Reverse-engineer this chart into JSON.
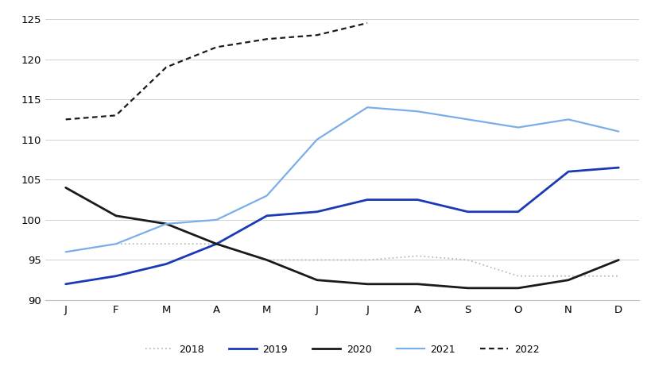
{
  "months": [
    "J",
    "F",
    "M",
    "A",
    "M",
    "J",
    "J",
    "A",
    "S",
    "O",
    "N",
    "D"
  ],
  "series": {
    "2018": [
      96.0,
      97.0,
      97.0,
      97.0,
      95.0,
      95.0,
      95.0,
      95.5,
      95.0,
      93.0,
      93.0,
      93.0
    ],
    "2019": [
      92.0,
      93.0,
      94.5,
      97.0,
      100.5,
      101.0,
      102.5,
      102.5,
      101.0,
      101.0,
      106.0,
      106.5
    ],
    "2020": [
      104.0,
      100.5,
      99.5,
      97.0,
      95.0,
      92.5,
      92.0,
      92.0,
      91.5,
      91.5,
      92.5,
      95.0
    ],
    "2021": [
      96.0,
      97.0,
      99.5,
      100.0,
      103.0,
      110.0,
      114.0,
      113.5,
      112.5,
      111.5,
      112.5,
      111.0
    ],
    "2022": [
      112.5,
      113.0,
      119.0,
      121.5,
      122.5,
      123.0,
      124.5,
      null,
      null,
      null,
      null,
      null
    ]
  },
  "colors": {
    "2018": "#b0b0b0",
    "2019": "#1a3ab5",
    "2020": "#1a1a1a",
    "2021": "#7aaee8",
    "2022": "#1a1a1a"
  },
  "styles": {
    "2018": "dotted",
    "2019": "solid",
    "2020": "solid",
    "2021": "solid",
    "2022": "dashed"
  },
  "linewidths": {
    "2018": 1.2,
    "2019": 2.0,
    "2020": 2.0,
    "2021": 1.6,
    "2022": 1.6
  },
  "ylim": [
    90,
    126
  ],
  "yticks": [
    90,
    95,
    100,
    105,
    110,
    115,
    120,
    125
  ],
  "background_color": "#ffffff",
  "grid_color": "#d0d0d0",
  "legend_order": [
    "2018",
    "2019",
    "2020",
    "2021",
    "2022"
  ]
}
